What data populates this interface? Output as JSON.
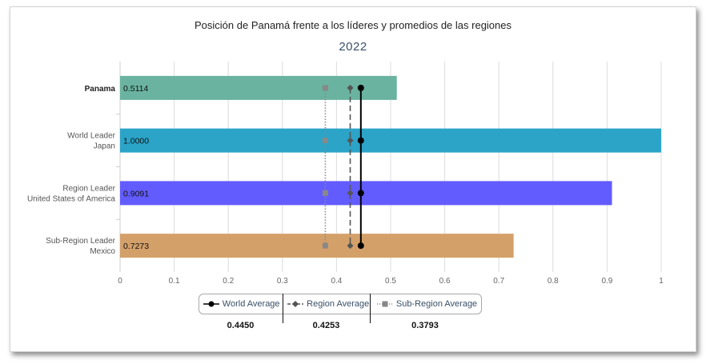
{
  "chart_data": {
    "type": "bar",
    "orientation": "horizontal",
    "title": "Posición de Panamá frente a los líderes y promedios de las regiones",
    "subtitle": "2022",
    "categories": [
      {
        "line1": "Panama",
        "line2": ""
      },
      {
        "line1": "World Leader",
        "line2": "Japan"
      },
      {
        "line1": "Region Leader",
        "line2": "United States of America"
      },
      {
        "line1": "Sub-Region Leader",
        "line2": "Mexico"
      }
    ],
    "values": [
      0.5114,
      1.0,
      0.9091,
      0.7273
    ],
    "value_labels": [
      "0.5114",
      "1.0000",
      "0.9091",
      "0.7273"
    ],
    "bar_colors": [
      "#6ab3a0",
      "#2ba4c8",
      "#625cff",
      "#d4a06a"
    ],
    "xlim": [
      0,
      1
    ],
    "xticks": [
      "0",
      "0.1",
      "0.2",
      "0.3",
      "0.4",
      "0.5",
      "0.6",
      "0.7",
      "0.8",
      "0.9",
      "1"
    ],
    "grid": true,
    "averages": [
      {
        "name": "World Average",
        "value": 0.445,
        "value_label": "0.4450",
        "color": "#000000",
        "marker": "circle",
        "line": "solid"
      },
      {
        "name": "Region Average",
        "value": 0.4253,
        "value_label": "0.4253",
        "color": "#555555",
        "marker": "diamond",
        "line": "dashed"
      },
      {
        "name": "Sub-Region Average",
        "value": 0.3793,
        "value_label": "0.3793",
        "color": "#888888",
        "marker": "square",
        "line": "dotted"
      }
    ],
    "legend_position": "bottom"
  }
}
